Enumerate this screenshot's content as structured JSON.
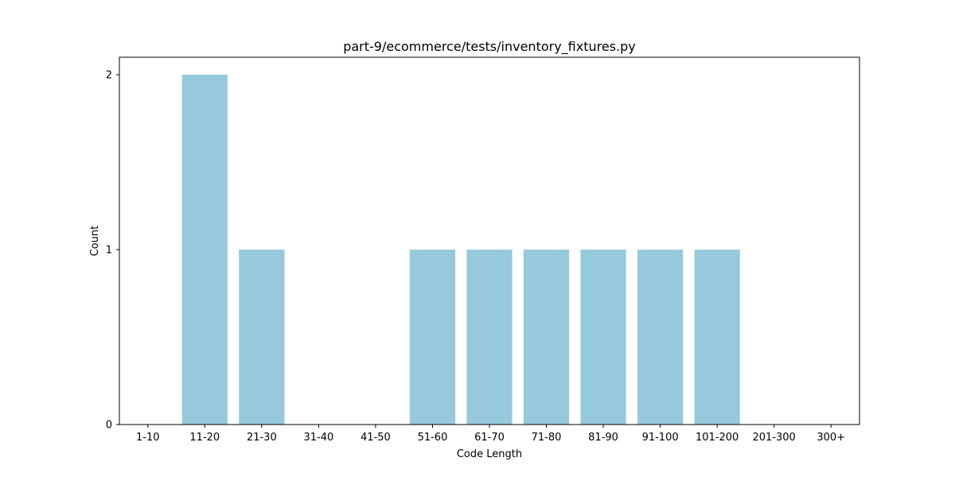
{
  "chart_data": {
    "type": "bar",
    "title": "part-9/ecommerce/tests/inventory_fixtures.py",
    "xlabel": "Code Length",
    "ylabel": "Count",
    "categories": [
      "1-10",
      "11-20",
      "21-30",
      "31-40",
      "41-50",
      "51-60",
      "61-70",
      "71-80",
      "81-90",
      "91-100",
      "101-200",
      "201-300",
      "300+"
    ],
    "values": [
      0,
      2,
      1,
      0,
      0,
      1,
      1,
      1,
      1,
      1,
      1,
      0,
      0
    ],
    "yticks": [
      0,
      1,
      2
    ],
    "ylim": [
      0,
      2.1
    ],
    "grid": false,
    "bar_color": "#96c9dc"
  }
}
